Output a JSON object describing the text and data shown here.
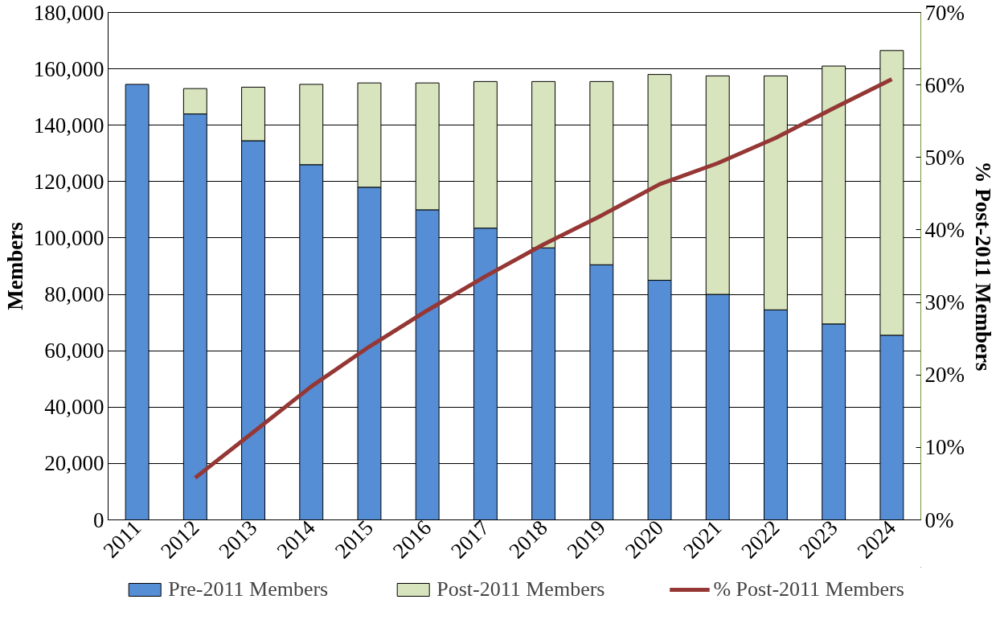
{
  "chart_data": {
    "type": "bar",
    "stacked": true,
    "categories": [
      "2011",
      "2012",
      "2013",
      "2014",
      "2015",
      "2016",
      "2017",
      "2018",
      "2019",
      "2020",
      "2021",
      "2022",
      "2023",
      "2024"
    ],
    "series": [
      {
        "name": "Pre-2011 Members",
        "color": "#558ed5",
        "values": [
          154500,
          144000,
          134500,
          126000,
          118000,
          110000,
          103500,
          96500,
          90500,
          85000,
          80000,
          74500,
          69500,
          65500
        ]
      },
      {
        "name": "Post-2011 Members",
        "color": "#d7e4bd",
        "values": [
          null,
          9000,
          19000,
          28500,
          37000,
          45000,
          52000,
          59000,
          65000,
          73000,
          77500,
          83000,
          91500,
          101000
        ]
      },
      {
        "name": "% Post-2011 Members",
        "type": "line",
        "axis": "y2",
        "color": "#953735",
        "values": [
          null,
          5.8,
          12.1,
          18.4,
          23.9,
          28.9,
          33.6,
          38.0,
          42.0,
          46.3,
          49.2,
          52.7,
          56.8,
          60.8
        ]
      }
    ],
    "ylabel": "Members",
    "y2label": "% Post-2011 Members",
    "ylim": [
      0,
      180000
    ],
    "yticks": [
      {
        "value": 0,
        "label": "0"
      },
      {
        "value": 20000,
        "label": "20,000"
      },
      {
        "value": 40000,
        "label": "40,000"
      },
      {
        "value": 60000,
        "label": "60,000"
      },
      {
        "value": 80000,
        "label": "80,000"
      },
      {
        "value": 100000,
        "label": "100,000"
      },
      {
        "value": 120000,
        "label": "120,000"
      },
      {
        "value": 140000,
        "label": "140,000"
      },
      {
        "value": 160000,
        "label": "160,000"
      },
      {
        "value": 180000,
        "label": "180,000"
      }
    ],
    "y2lim": [
      0,
      70
    ],
    "y2ticks": [
      {
        "value": 0,
        "label": "0%"
      },
      {
        "value": 10,
        "label": "10%"
      },
      {
        "value": 20,
        "label": "20%"
      },
      {
        "value": 30,
        "label": "30%"
      },
      {
        "value": 40,
        "label": "40%"
      },
      {
        "value": 50,
        "label": "50%"
      },
      {
        "value": 60,
        "label": "60%"
      },
      {
        "value": 70,
        "label": "70%"
      }
    ],
    "grid": "y",
    "legend": "bottom",
    "marker": "none",
    "line_style": "solid"
  }
}
